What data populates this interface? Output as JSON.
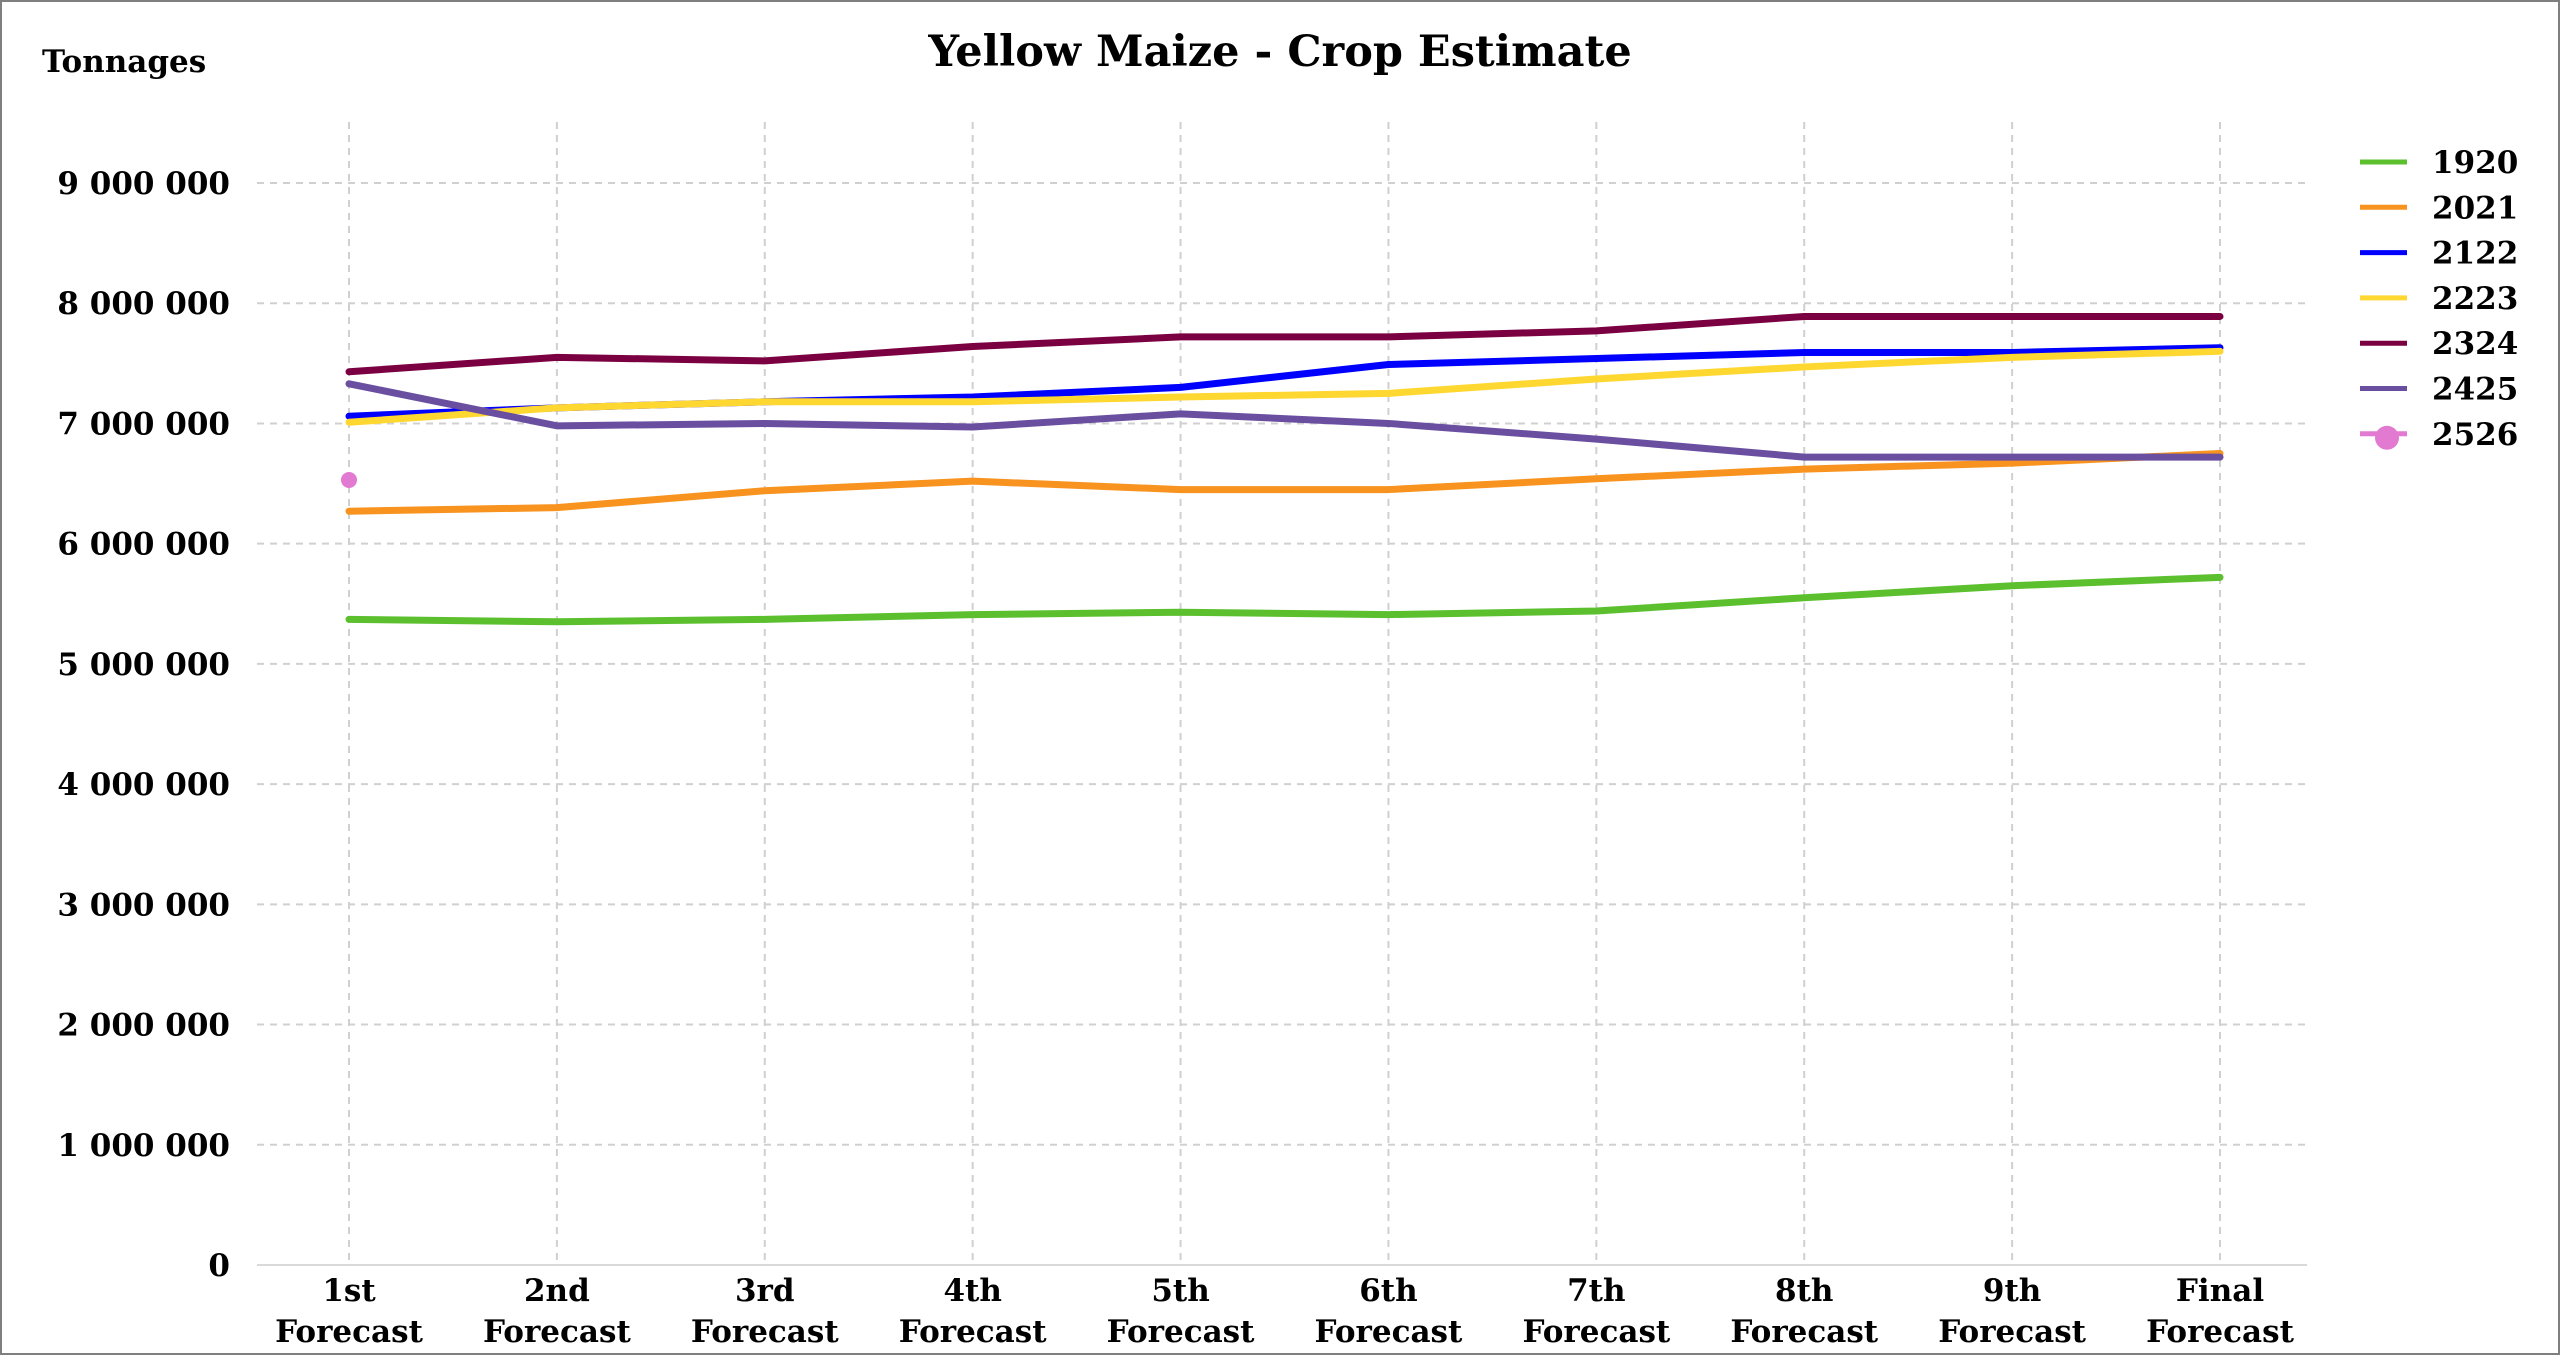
{
  "chart_data": {
    "type": "line",
    "title": "Yellow Maize - Crop Estimate",
    "ylabel": "Tonnages",
    "xlabel": "",
    "categories": [
      [
        "1st",
        "Forecast"
      ],
      [
        "2nd",
        "Forecast"
      ],
      [
        "3rd",
        "Forecast"
      ],
      [
        "4th",
        "Forecast"
      ],
      [
        "5th",
        "Forecast"
      ],
      [
        "6th",
        "Forecast"
      ],
      [
        "7th",
        "Forecast"
      ],
      [
        "8th",
        "Forecast"
      ],
      [
        "9th",
        "Forecast"
      ],
      [
        "Final",
        "Forecast"
      ]
    ],
    "ylim": [
      0,
      9000000
    ],
    "yticks": [
      0,
      1000000,
      2000000,
      3000000,
      4000000,
      5000000,
      6000000,
      7000000,
      8000000,
      9000000
    ],
    "ytick_labels": [
      "0",
      "1 000 000",
      "2 000 000",
      "3 000 000",
      "4 000 000",
      "5 000 000",
      "6 000 000",
      "7 000 000",
      "8 000 000",
      "9 000 000"
    ],
    "grid": true,
    "legend_position": "right",
    "series": [
      {
        "name": "1920",
        "color": "#5bbf2e",
        "marker": "none",
        "values": [
          5370000,
          5350000,
          5370000,
          5410000,
          5430000,
          5410000,
          5440000,
          5550000,
          5650000,
          5720000
        ]
      },
      {
        "name": "2021",
        "color": "#f7931e",
        "marker": "none",
        "values": [
          6270000,
          6300000,
          6440000,
          6520000,
          6450000,
          6450000,
          6540000,
          6620000,
          6670000,
          6750000
        ]
      },
      {
        "name": "2122",
        "color": "#0000ff",
        "marker": "none",
        "values": [
          7060000,
          7130000,
          7180000,
          7220000,
          7300000,
          7490000,
          7540000,
          7590000,
          7590000,
          7630000
        ]
      },
      {
        "name": "2223",
        "color": "#ffd731",
        "marker": "none",
        "values": [
          7010000,
          7130000,
          7180000,
          7180000,
          7220000,
          7250000,
          7370000,
          7470000,
          7550000,
          7600000
        ]
      },
      {
        "name": "2324",
        "color": "#7b0041",
        "marker": "none",
        "values": [
          7430000,
          7550000,
          7520000,
          7640000,
          7720000,
          7720000,
          7770000,
          7890000,
          7890000,
          7890000
        ]
      },
      {
        "name": "2425",
        "color": "#6a4fa0",
        "marker": "none",
        "values": [
          7330000,
          6980000,
          7000000,
          6970000,
          7080000,
          7000000,
          6870000,
          6720000,
          6720000,
          6720000
        ]
      },
      {
        "name": "2526",
        "color": "#e27ad1",
        "marker": "circle",
        "values": [
          6530000,
          null,
          null,
          null,
          null,
          null,
          null,
          null,
          null,
          null
        ]
      }
    ]
  }
}
